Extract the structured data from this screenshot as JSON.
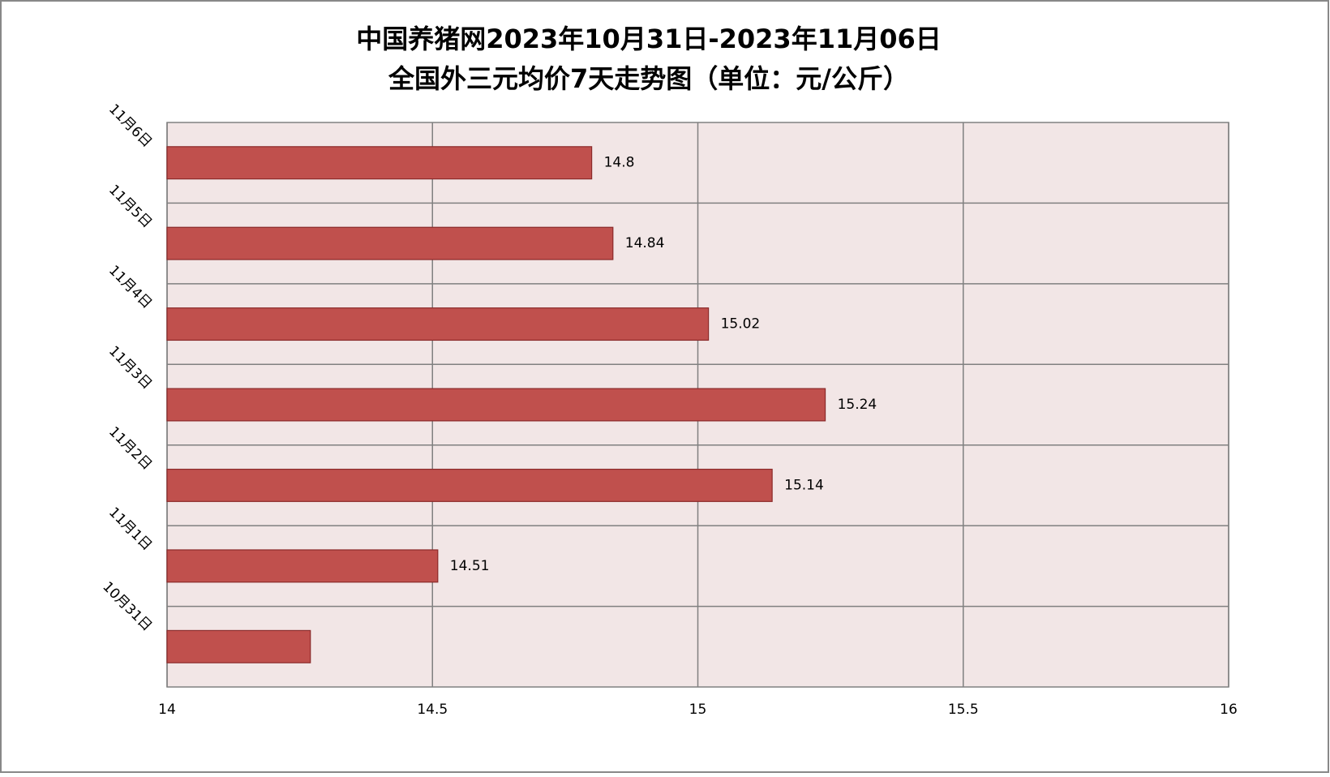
{
  "chart_data": {
    "type": "bar",
    "orientation": "horizontal",
    "title": [
      "中国养猪网2023年10月31日-2023年11月06日",
      "全国外三元均价7天走势图（单位：元/公斤）"
    ],
    "categories": [
      "10月31日",
      "11月1日",
      "11月2日",
      "11月3日",
      "11月4日",
      "11月5日",
      "11月6日"
    ],
    "values": [
      14.27,
      14.51,
      15.14,
      15.24,
      15.02,
      14.84,
      14.8
    ],
    "value_labels": [
      null,
      "14.51",
      "15.14",
      "15.24",
      "15.02",
      "14.84",
      "14.8"
    ],
    "color": "#c0504d",
    "xlim": [
      14,
      16
    ],
    "xticks": [
      14,
      14.5,
      15,
      15.5,
      16
    ],
    "grid": true
  }
}
